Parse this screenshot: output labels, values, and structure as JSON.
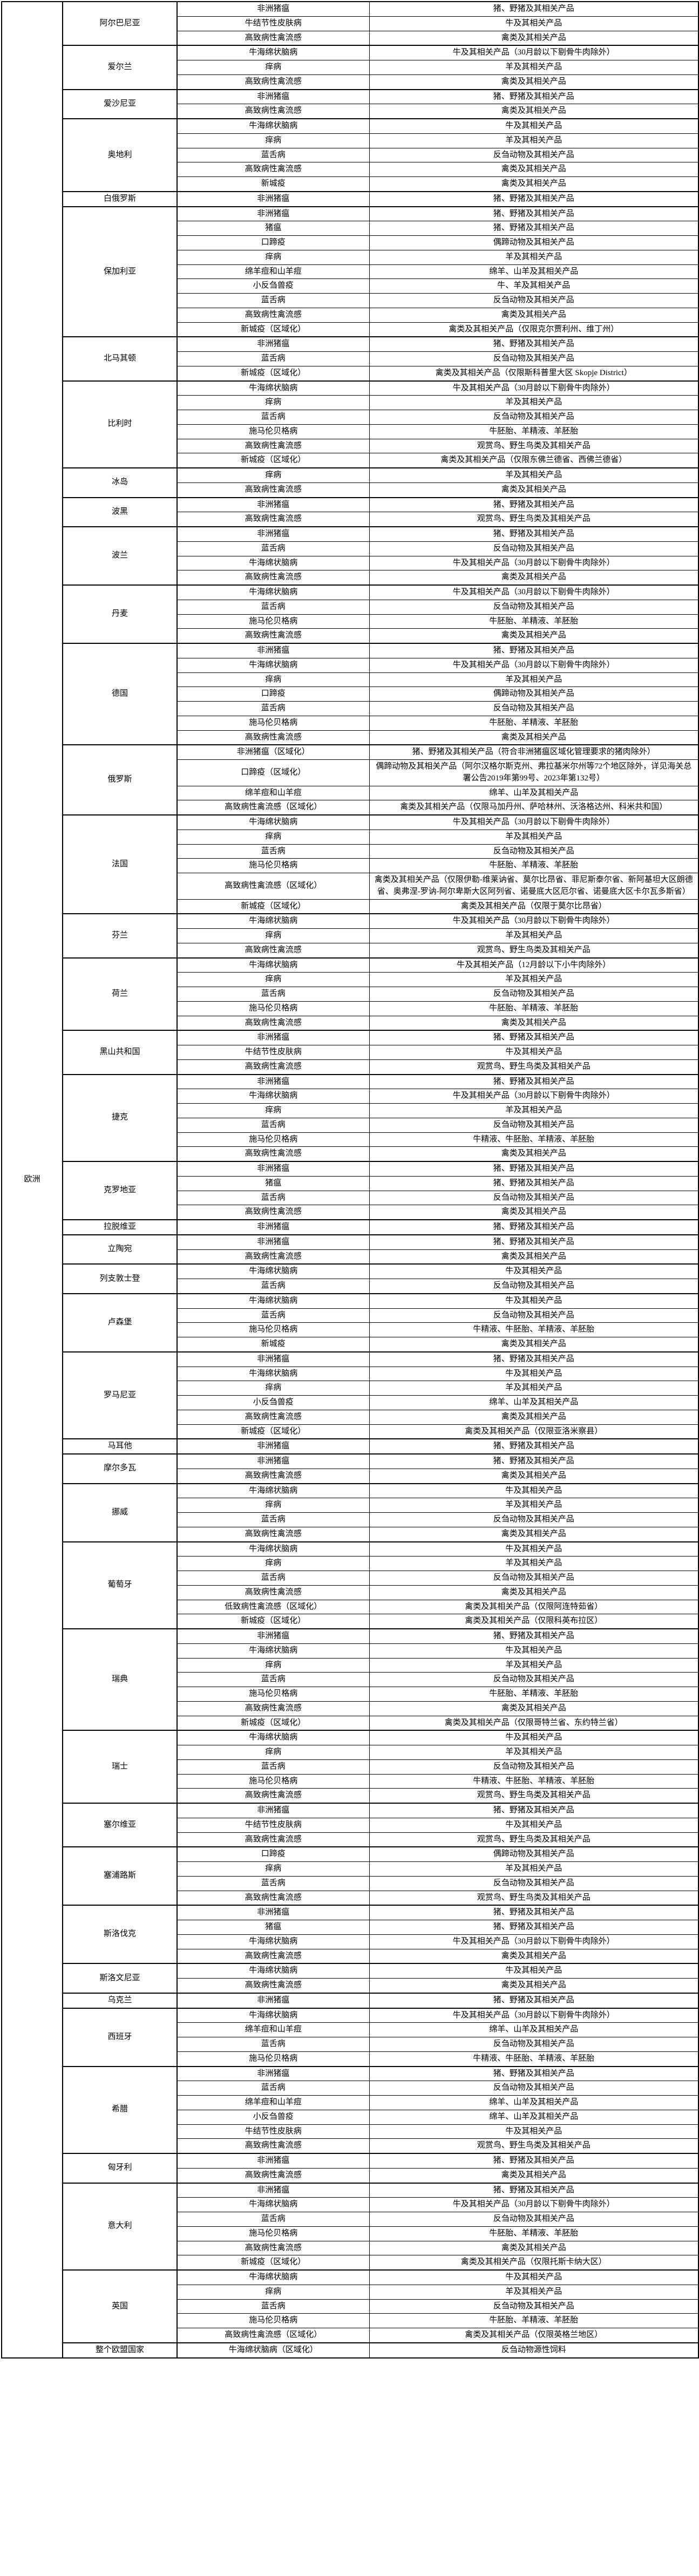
{
  "continent_label": "欧洲",
  "groups": [
    {
      "country": "阿尔巴尼亚",
      "rows": [
        {
          "disease": "非洲猪瘟",
          "products": "猪、野猪及其相关产品"
        },
        {
          "disease": "牛结节性皮肤病",
          "products": "牛及其相关产品"
        },
        {
          "disease": "高致病性禽流感",
          "products": "禽类及其相关产品"
        }
      ]
    },
    {
      "country": "爱尔兰",
      "rows": [
        {
          "disease": "牛海绵状脑病",
          "products": "牛及其相关产品（30月龄以下剔骨牛肉除外）"
        },
        {
          "disease": "痒病",
          "products": "羊及其相关产品"
        },
        {
          "disease": "高致病性禽流感",
          "products": "禽类及其相关产品"
        }
      ]
    },
    {
      "country": "爱沙尼亚",
      "rows": [
        {
          "disease": "非洲猪瘟",
          "products": "猪、野猪及其相关产品"
        },
        {
          "disease": "高致病性禽流感",
          "products": "禽类及其相关产品"
        }
      ]
    },
    {
      "country": "奥地利",
      "rows": [
        {
          "disease": "牛海绵状脑病",
          "products": "牛及其相关产品"
        },
        {
          "disease": "痒病",
          "products": "羊及其相关产品"
        },
        {
          "disease": "蓝舌病",
          "products": "反刍动物及其相关产品"
        },
        {
          "disease": "高致病性禽流感",
          "products": "禽类及其相关产品"
        },
        {
          "disease": "新城疫",
          "products": "禽类及其相关产品"
        }
      ]
    },
    {
      "country": "白俄罗斯",
      "rows": [
        {
          "disease": "非洲猪瘟",
          "products": "猪、野猪及其相关产品"
        }
      ]
    },
    {
      "country": "保加利亚",
      "rows": [
        {
          "disease": "非洲猪瘟",
          "products": "猪、野猪及其相关产品"
        },
        {
          "disease": "猪瘟",
          "products": "猪、野猪及其相关产品"
        },
        {
          "disease": "口蹄疫",
          "products": "偶蹄动物及其相关产品"
        },
        {
          "disease": "痒病",
          "products": "羊及其相关产品"
        },
        {
          "disease": "绵羊痘和山羊痘",
          "products": "绵羊、山羊及其相关产品"
        },
        {
          "disease": "小反刍兽疫",
          "products": "牛、羊及其相关产品"
        },
        {
          "disease": "蓝舌病",
          "products": "反刍动物及其相关产品"
        },
        {
          "disease": "高致病性禽流感",
          "products": "禽类及其相关产品"
        },
        {
          "disease": "新城疫（区域化）",
          "products": "禽类及其相关产品（仅限克尔贾利州、维丁州）"
        }
      ]
    },
    {
      "country": "北马其顿",
      "rows": [
        {
          "disease": "非洲猪瘟",
          "products": "猪、野猪及其相关产品"
        },
        {
          "disease": "蓝舌病",
          "products": "反刍动物及其相关产品"
        },
        {
          "disease": "新城疫（区域化）",
          "products": "禽类及其相关产品（仅限斯科普里大区 Skopje District）"
        }
      ]
    },
    {
      "country": "比利时",
      "rows": [
        {
          "disease": "牛海绵状脑病",
          "products": "牛及其相关产品（30月龄以下剔骨牛肉除外）"
        },
        {
          "disease": "痒病",
          "products": "羊及其相关产品"
        },
        {
          "disease": "蓝舌病",
          "products": "反刍动物及其相关产品"
        },
        {
          "disease": "施马伦贝格病",
          "products": "牛胚胎、羊精液、羊胚胎"
        },
        {
          "disease": "高致病性禽流感",
          "products": "观赏鸟、野生鸟类及其相关产品"
        },
        {
          "disease": "新城疫（区域化）",
          "products": "禽类及其相关产品（仅限东佛兰德省、西佛兰德省）"
        }
      ]
    },
    {
      "country": "冰岛",
      "rows": [
        {
          "disease": "痒病",
          "products": "羊及其相关产品"
        },
        {
          "disease": "高致病性禽流感",
          "products": "禽类及其相关产品"
        }
      ]
    },
    {
      "country": "波黑",
      "rows": [
        {
          "disease": "非洲猪瘟",
          "products": "猪、野猪及其相关产品"
        },
        {
          "disease": "高致病性禽流感",
          "products": "观赏鸟、野生鸟类及其相关产品"
        }
      ]
    },
    {
      "country": "波兰",
      "rows": [
        {
          "disease": "非洲猪瘟",
          "products": "猪、野猪及其相关产品"
        },
        {
          "disease": "蓝舌病",
          "products": "反刍动物及其相关产品"
        },
        {
          "disease": "牛海绵状脑病",
          "products": "牛及其相关产品（30月龄以下剔骨牛肉除外）"
        },
        {
          "disease": "高致病性禽流感",
          "products": "禽类及其相关产品"
        }
      ]
    },
    {
      "country": "丹麦",
      "rows": [
        {
          "disease": "牛海绵状脑病",
          "products": "牛及其相关产品（30月龄以下剔骨牛肉除外）"
        },
        {
          "disease": "蓝舌病",
          "products": "反刍动物及其相关产品"
        },
        {
          "disease": "施马伦贝格病",
          "products": "牛胚胎、羊精液、羊胚胎"
        },
        {
          "disease": "高致病性禽流感",
          "products": "禽类及其相关产品"
        }
      ]
    },
    {
      "country": "德国",
      "rows": [
        {
          "disease": "非洲猪瘟",
          "products": "猪、野猪及其相关产品"
        },
        {
          "disease": "牛海绵状脑病",
          "products": "牛及其相关产品（30月龄以下剔骨牛肉除外）"
        },
        {
          "disease": "痒病",
          "products": "羊及其相关产品"
        },
        {
          "disease": "口蹄疫",
          "products": "偶蹄动物及其相关产品"
        },
        {
          "disease": "蓝舌病",
          "products": "反刍动物及其相关产品"
        },
        {
          "disease": "施马伦贝格病",
          "products": "牛胚胎、羊精液、羊胚胎"
        },
        {
          "disease": "高致病性禽流感",
          "products": "禽类及其相关产品"
        }
      ]
    },
    {
      "country": "俄罗斯",
      "rows": [
        {
          "disease": "非洲猪瘟（区域化）",
          "products": "猪、野猪及其相关产品（符合非洲猪瘟区域化管理要求的猪肉除外）"
        },
        {
          "disease": "口蹄疫（区域化）",
          "products": "偶蹄动物及其相关产品（阿尔汉格尔斯克州、弗拉基米尔州等72个地区除外，详见海关总署公告2019年第99号、2023年第132号）"
        },
        {
          "disease": "绵羊痘和山羊痘",
          "products": "绵羊、山羊及其相关产品"
        },
        {
          "disease": "高致病性禽流感（区域化）",
          "products": "禽类及其相关产品（仅限马加丹州、萨哈林州、沃洛格达州、科米共和国）"
        }
      ]
    },
    {
      "country": "法国",
      "rows": [
        {
          "disease": "牛海绵状脑病",
          "products": "牛及其相关产品（30月龄以下剔骨牛肉除外）"
        },
        {
          "disease": "痒病",
          "products": "羊及其相关产品"
        },
        {
          "disease": "蓝舌病",
          "products": "反刍动物及其相关产品"
        },
        {
          "disease": "施马伦贝格病",
          "products": "牛胚胎、羊精液、羊胚胎"
        },
        {
          "disease": "高致病性禽流感（区域化）",
          "products": "禽类及其相关产品（仅限伊勒-维莱讷省、莫尔比昂省、菲尼斯泰尔省、新阿基坦大区朗德省、奥弗涅-罗讷-阿尔卑斯大区阿列省、诺曼底大区厄尔省、诺曼底大区卡尔瓦多斯省）"
        },
        {
          "disease": "新城疫（区域化）",
          "products": "禽类及其相关产品（仅限于莫尔比昂省）"
        }
      ]
    },
    {
      "country": "芬兰",
      "rows": [
        {
          "disease": "牛海绵状脑病",
          "products": "牛及其相关产品（30月龄以下剔骨牛肉除外）"
        },
        {
          "disease": "痒病",
          "products": "羊及其相关产品"
        },
        {
          "disease": "高致病性禽流感",
          "products": "观赏鸟、野生鸟类及其相关产品"
        }
      ]
    },
    {
      "country": "荷兰",
      "rows": [
        {
          "disease": "牛海绵状脑病",
          "products": "牛及其相关产品（12月龄以下小牛肉除外）"
        },
        {
          "disease": "痒病",
          "products": "羊及其相关产品"
        },
        {
          "disease": "蓝舌病",
          "products": "反刍动物及其相关产品"
        },
        {
          "disease": "施马伦贝格病",
          "products": "牛胚胎、羊精液、羊胚胎"
        },
        {
          "disease": "高致病性禽流感",
          "products": "禽类及其相关产品"
        }
      ]
    },
    {
      "country": "黑山共和国",
      "rows": [
        {
          "disease": "非洲猪瘟",
          "products": "猪、野猪及其相关产品"
        },
        {
          "disease": "牛结节性皮肤病",
          "products": "牛及其相关产品"
        },
        {
          "disease": "高致病性禽流感",
          "products": "观赏鸟、野生鸟类及其相关产品"
        }
      ]
    },
    {
      "country": "捷克",
      "rows": [
        {
          "disease": "非洲猪瘟",
          "products": "猪、野猪及其相关产品"
        },
        {
          "disease": "牛海绵状脑病",
          "products": "牛及其相关产品（30月龄以下剔骨牛肉除外）"
        },
        {
          "disease": "痒病",
          "products": "羊及其相关产品"
        },
        {
          "disease": "蓝舌病",
          "products": "反刍动物及其相关产品"
        },
        {
          "disease": "施马伦贝格病",
          "products": "牛精液、牛胚胎、羊精液、羊胚胎"
        },
        {
          "disease": "高致病性禽流感",
          "products": "禽类及其相关产品"
        }
      ]
    },
    {
      "country": "克罗地亚",
      "rows": [
        {
          "disease": "非洲猪瘟",
          "products": "猪、野猪及其相关产品"
        },
        {
          "disease": "猪瘟",
          "products": "猪、野猪及其相关产品"
        },
        {
          "disease": "蓝舌病",
          "products": "反刍动物及其相关产品"
        },
        {
          "disease": "高致病性禽流感",
          "products": "禽类及其相关产品"
        }
      ]
    },
    {
      "country": "拉脱维亚",
      "rows": [
        {
          "disease": "非洲猪瘟",
          "products": "猪、野猪及其相关产品"
        }
      ]
    },
    {
      "country": "立陶宛",
      "rows": [
        {
          "disease": "非洲猪瘟",
          "products": "猪、野猪及其相关产品"
        },
        {
          "disease": "高致病性禽流感",
          "products": "禽类及其相关产品"
        }
      ]
    },
    {
      "country": "列支敦士登",
      "rows": [
        {
          "disease": "牛海绵状脑病",
          "products": "牛及其相关产品"
        },
        {
          "disease": "蓝舌病",
          "products": "反刍动物及其相关产品"
        }
      ]
    },
    {
      "country": "卢森堡",
      "rows": [
        {
          "disease": "牛海绵状脑病",
          "products": "牛及其相关产品"
        },
        {
          "disease": "蓝舌病",
          "products": "反刍动物及其相关产品"
        },
        {
          "disease": "施马伦贝格病",
          "products": "牛精液、牛胚胎、羊精液、羊胚胎"
        },
        {
          "disease": "新城疫",
          "products": "禽类及其相关产品"
        }
      ]
    },
    {
      "country": "罗马尼亚",
      "rows": [
        {
          "disease": "非洲猪瘟",
          "products": "猪、野猪及其相关产品"
        },
        {
          "disease": "牛海绵状脑病",
          "products": "牛及其相关产品"
        },
        {
          "disease": "痒病",
          "products": "羊及其相关产品"
        },
        {
          "disease": "小反刍兽疫",
          "products": "绵羊、山羊及其相关产品"
        },
        {
          "disease": "高致病性禽流感",
          "products": "禽类及其相关产品"
        },
        {
          "disease": "新城疫（区域化）",
          "products": "禽类及其相关产品（仅限亚洛米察县）"
        }
      ]
    },
    {
      "country": "马耳他",
      "rows": [
        {
          "disease": "非洲猪瘟",
          "products": "猪、野猪及其相关产品"
        }
      ]
    },
    {
      "country": "摩尔多瓦",
      "rows": [
        {
          "disease": "非洲猪瘟",
          "products": "猪、野猪及其相关产品"
        },
        {
          "disease": "高致病性禽流感",
          "products": "禽类及其相关产品"
        }
      ]
    },
    {
      "country": "挪威",
      "rows": [
        {
          "disease": "牛海绵状脑病",
          "products": "牛及其相关产品"
        },
        {
          "disease": "痒病",
          "products": "羊及其相关产品"
        },
        {
          "disease": "蓝舌病",
          "products": "反刍动物及其相关产品"
        },
        {
          "disease": "高致病性禽流感",
          "products": "禽类及其相关产品"
        }
      ]
    },
    {
      "country": "葡萄牙",
      "rows": [
        {
          "disease": "牛海绵状脑病",
          "products": "牛及其相关产品"
        },
        {
          "disease": "痒病",
          "products": "羊及其相关产品"
        },
        {
          "disease": "蓝舌病",
          "products": "反刍动物及其相关产品"
        },
        {
          "disease": "高致病性禽流感",
          "products": "禽类及其相关产品"
        },
        {
          "disease": "低致病性禽流感（区域化）",
          "products": "禽类及其相关产品（仅限阿连特茹省）"
        },
        {
          "disease": "新城疫（区域化）",
          "products": "禽类及其相关产品（仅限科英布拉区）"
        }
      ]
    },
    {
      "country": "瑞典",
      "rows": [
        {
          "disease": "非洲猪瘟",
          "products": "猪、野猪及其相关产品"
        },
        {
          "disease": "牛海绵状脑病",
          "products": "牛及其相关产品"
        },
        {
          "disease": "痒病",
          "products": "羊及其相关产品"
        },
        {
          "disease": "蓝舌病",
          "products": "反刍动物及其相关产品"
        },
        {
          "disease": "施马伦贝格病",
          "products": "牛胚胎、羊精液、羊胚胎"
        },
        {
          "disease": "高致病性禽流感",
          "products": "禽类及其相关产品"
        },
        {
          "disease": "新城疫（区域化）",
          "products": "禽类及其相关产品（仅限哥特兰省、东约特兰省）"
        }
      ]
    },
    {
      "country": "瑞士",
      "rows": [
        {
          "disease": "牛海绵状脑病",
          "products": "牛及其相关产品"
        },
        {
          "disease": "痒病",
          "products": "羊及其相关产品"
        },
        {
          "disease": "蓝舌病",
          "products": "反刍动物及其相关产品"
        },
        {
          "disease": "施马伦贝格病",
          "products": "牛精液、牛胚胎、羊精液、羊胚胎"
        },
        {
          "disease": "高致病性禽流感",
          "products": "观赏鸟、野生鸟类及其相关产品"
        }
      ]
    },
    {
      "country": "塞尔维亚",
      "rows": [
        {
          "disease": "非洲猪瘟",
          "products": "猪、野猪及其相关产品"
        },
        {
          "disease": "牛结节性皮肤病",
          "products": "牛及其相关产品"
        },
        {
          "disease": "高致病性禽流感",
          "products": "观赏鸟、野生鸟类及其相关产品"
        }
      ]
    },
    {
      "country": "塞浦路斯",
      "rows": [
        {
          "disease": "口蹄疫",
          "products": "偶蹄动物及其相关产品"
        },
        {
          "disease": "痒病",
          "products": "羊及其相关产品"
        },
        {
          "disease": "蓝舌病",
          "products": "反刍动物及其相关产品"
        },
        {
          "disease": "高致病性禽流感",
          "products": "观赏鸟、野生鸟类及其相关产品"
        }
      ]
    },
    {
      "country": "斯洛伐克",
      "rows": [
        {
          "disease": "非洲猪瘟",
          "products": "猪、野猪及其相关产品"
        },
        {
          "disease": "猪瘟",
          "products": "猪、野猪及其相关产品"
        },
        {
          "disease": "牛海绵状脑病",
          "products": "牛及其相关产品（30月龄以下剔骨牛肉除外）"
        },
        {
          "disease": "高致病性禽流感",
          "products": "禽类及其相关产品"
        }
      ]
    },
    {
      "country": "斯洛文尼亚",
      "rows": [
        {
          "disease": "牛海绵状脑病",
          "products": "牛及其相关产品"
        },
        {
          "disease": "高致病性禽流感",
          "products": "禽类及其相关产品"
        }
      ]
    },
    {
      "country": "乌克兰",
      "rows": [
        {
          "disease": "非洲猪瘟",
          "products": "猪、野猪及其相关产品"
        }
      ]
    },
    {
      "country": "西班牙",
      "rows": [
        {
          "disease": "牛海绵状脑病",
          "products": "牛及其相关产品（30月龄以下剔骨牛肉除外）"
        },
        {
          "disease": "绵羊痘和山羊痘",
          "products": "绵羊、山羊及其相关产品"
        },
        {
          "disease": "蓝舌病",
          "products": "反刍动物及其相关产品"
        },
        {
          "disease": "施马伦贝格病",
          "products": "牛精液、牛胚胎、羊精液、羊胚胎"
        }
      ]
    },
    {
      "country": "希腊",
      "rows": [
        {
          "disease": "非洲猪瘟",
          "products": "猪、野猪及其相关产品"
        },
        {
          "disease": "蓝舌病",
          "products": "反刍动物及其相关产品"
        },
        {
          "disease": "绵羊痘和山羊痘",
          "products": "绵羊、山羊及其相关产品"
        },
        {
          "disease": "小反刍兽疫",
          "products": "绵羊、山羊及其相关产品"
        },
        {
          "disease": "牛结节性皮肤病",
          "products": "牛及其相关产品"
        },
        {
          "disease": "高致病性禽流感",
          "products": "观赏鸟、野生鸟类及其相关产品"
        }
      ]
    },
    {
      "country": "匈牙利",
      "rows": [
        {
          "disease": "非洲猪瘟",
          "products": "猪、野猪及其相关产品"
        },
        {
          "disease": "高致病性禽流感",
          "products": "禽类及其相关产品"
        }
      ]
    },
    {
      "country": "意大利",
      "rows": [
        {
          "disease": "非洲猪瘟",
          "products": "猪、野猪及其相关产品"
        },
        {
          "disease": "牛海绵状脑病",
          "products": "牛及其相关产品（30月龄以下剔骨牛肉除外）"
        },
        {
          "disease": "蓝舌病",
          "products": "反刍动物及其相关产品"
        },
        {
          "disease": "施马伦贝格病",
          "products": "牛胚胎、羊精液、羊胚胎"
        },
        {
          "disease": "高致病性禽流感",
          "products": "禽类及其相关产品"
        },
        {
          "disease": "新城疫（区域化）",
          "products": "禽类及其相关产品（仅限托斯卡纳大区）"
        }
      ]
    },
    {
      "country": "英国",
      "rows": [
        {
          "disease": "牛海绵状脑病",
          "products": "牛及其相关产品"
        },
        {
          "disease": "痒病",
          "products": "羊及其相关产品"
        },
        {
          "disease": "蓝舌病",
          "products": "反刍动物及其相关产品"
        },
        {
          "disease": "施马伦贝格病",
          "products": "牛胚胎、羊精液、羊胚胎"
        },
        {
          "disease": "高致病性禽流感（区域化）",
          "products": "禽类及其相关产品（仅限英格兰地区）"
        }
      ]
    },
    {
      "country": "整个欧盟国家",
      "rows": [
        {
          "disease": "牛海绵状脑病（区域化）",
          "products": "反刍动物源性饲料"
        }
      ]
    }
  ]
}
